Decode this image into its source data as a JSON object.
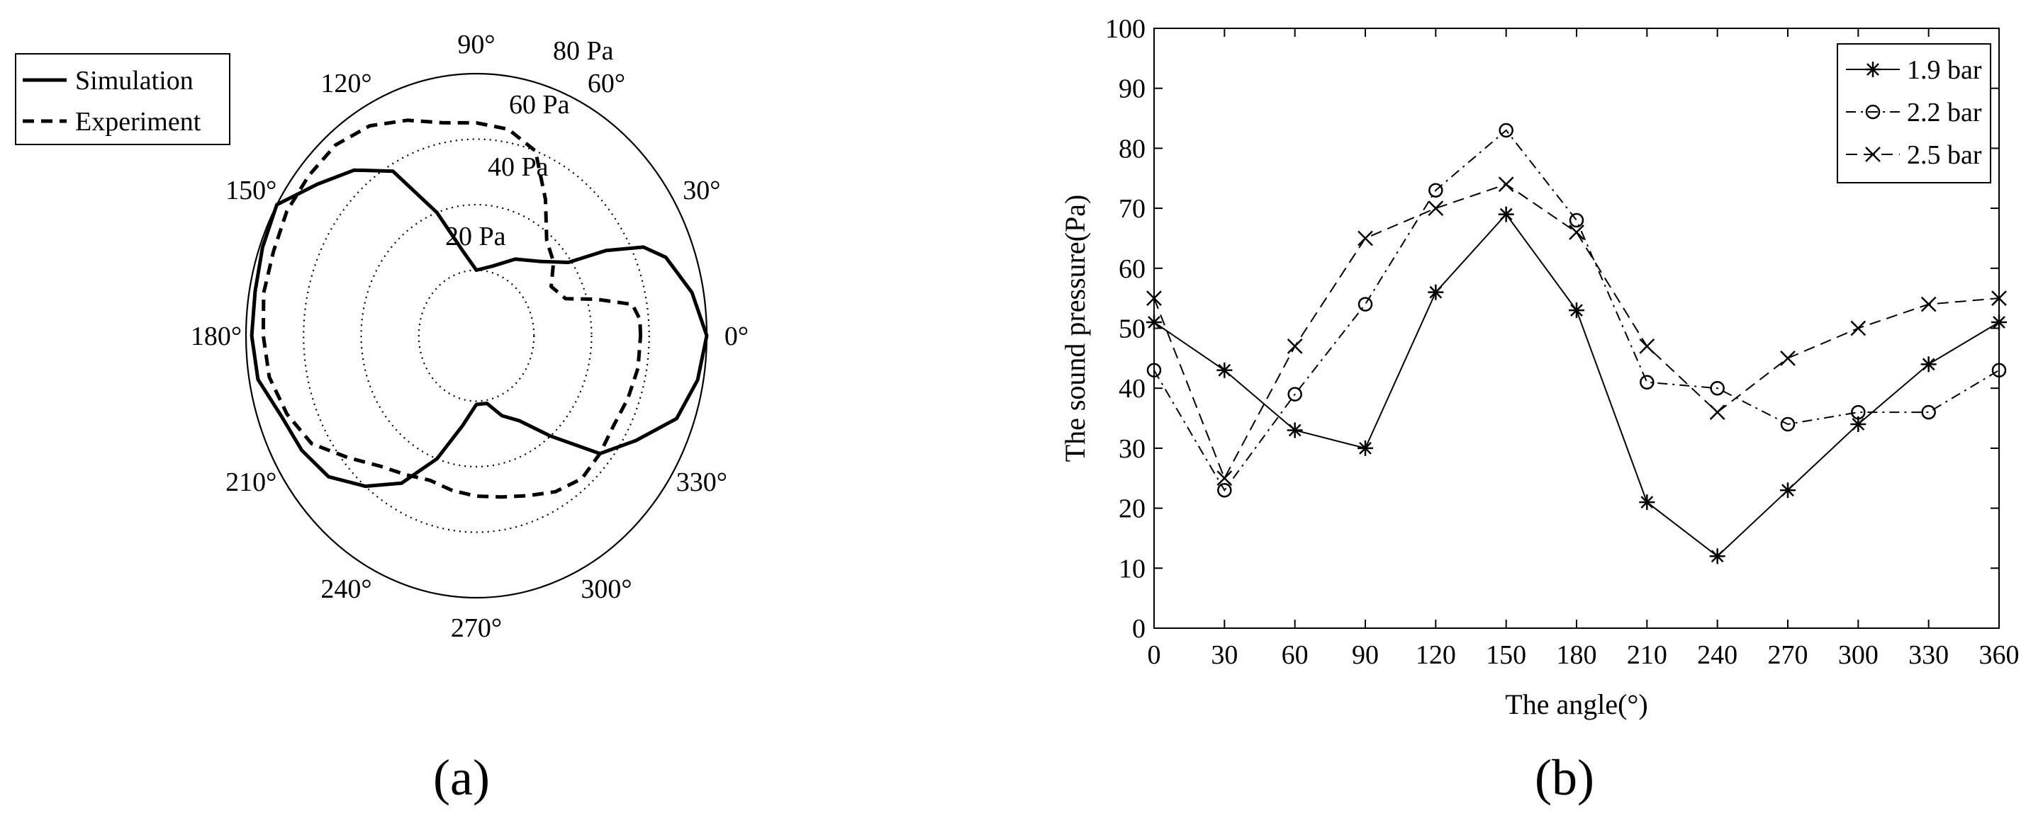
{
  "panels": [
    {
      "label": "(a)"
    },
    {
      "label": "(b)"
    }
  ],
  "chart_data": [
    {
      "type": "polar-line",
      "panel": "(a)",
      "angle_unit": "degree",
      "radial_unit": "Pa",
      "radial_ticks": [
        20,
        40,
        60,
        80
      ],
      "radial_tick_labels": [
        "20 Pa",
        "40 Pa",
        "60 Pa",
        "80 Pa"
      ],
      "angle_tick_labels": [
        "0°",
        "30°",
        "60°",
        "90°",
        "120°",
        "150°",
        "180°",
        "210°",
        "240°",
        "270°",
        "300°",
        "330°"
      ],
      "rlim": [
        0,
        80
      ],
      "legend": "top-left",
      "series": [
        {
          "name": "Simulation",
          "line": "solid",
          "points": [
            [
              0,
              80
            ],
            [
              10,
              76
            ],
            [
              20,
              70
            ],
            [
              25,
              64
            ],
            [
              30,
              52
            ],
            [
              35,
              39
            ],
            [
              45,
              32
            ],
            [
              60,
              27
            ],
            [
              75,
              22
            ],
            [
              90,
              20
            ],
            [
              100,
              26
            ],
            [
              110,
              40
            ],
            [
              120,
              58
            ],
            [
              130,
              66
            ],
            [
              140,
              72
            ],
            [
              150,
              80
            ],
            [
              160,
              79
            ],
            [
              170,
              78
            ],
            [
              180,
              78
            ],
            [
              190,
              77
            ],
            [
              200,
              72
            ],
            [
              210,
              70
            ],
            [
              220,
              67
            ],
            [
              230,
              60
            ],
            [
              240,
              52
            ],
            [
              250,
              40
            ],
            [
              260,
              28
            ],
            [
              270,
              21
            ],
            [
              280,
              21
            ],
            [
              290,
              26
            ],
            [
              300,
              30
            ],
            [
              310,
              40
            ],
            [
              320,
              56
            ],
            [
              330,
              64
            ],
            [
              340,
              74
            ],
            [
              350,
              78
            ],
            [
              360,
              80
            ]
          ]
        },
        {
          "name": "Experiment",
          "line": "dashed",
          "points": [
            [
              0,
              57
            ],
            [
              5,
              57
            ],
            [
              10,
              55
            ],
            [
              15,
              43
            ],
            [
              20,
              33
            ],
            [
              30,
              30
            ],
            [
              40,
              35
            ],
            [
              50,
              38
            ],
            [
              60,
              48
            ],
            [
              70,
              60
            ],
            [
              80,
              64
            ],
            [
              90,
              65
            ],
            [
              100,
              66
            ],
            [
              110,
              70
            ],
            [
              120,
              74
            ],
            [
              130,
              76
            ],
            [
              140,
              76
            ],
            [
              150,
              76
            ],
            [
              160,
              75
            ],
            [
              170,
              75
            ],
            [
              180,
              74
            ],
            [
              190,
              73
            ],
            [
              200,
              70
            ],
            [
              210,
              66
            ],
            [
              220,
              58
            ],
            [
              230,
              52
            ],
            [
              240,
              49
            ],
            [
              250,
              47
            ],
            [
              260,
              48
            ],
            [
              270,
              49
            ],
            [
              280,
              50
            ],
            [
              290,
              52
            ],
            [
              300,
              55
            ],
            [
              310,
              57
            ],
            [
              320,
              56
            ],
            [
              330,
              55
            ],
            [
              340,
              56
            ],
            [
              350,
              57
            ],
            [
              360,
              57
            ]
          ]
        }
      ]
    },
    {
      "type": "line",
      "panel": "(b)",
      "xlabel": "The angle(°)",
      "ylabel": "The sound pressure(Pa)",
      "x": [
        0,
        30,
        60,
        90,
        120,
        150,
        180,
        210,
        240,
        270,
        300,
        330,
        360
      ],
      "xlim": [
        0,
        360
      ],
      "ylim": [
        0,
        100
      ],
      "xticks": [
        0,
        30,
        60,
        90,
        120,
        150,
        180,
        210,
        240,
        270,
        300,
        330,
        360
      ],
      "yticks": [
        0,
        10,
        20,
        30,
        40,
        50,
        60,
        70,
        80,
        90,
        100
      ],
      "legend": "top-right",
      "grid": false,
      "series": [
        {
          "name": "1.9 bar",
          "marker": "asterisk",
          "line": "solid",
          "values": [
            51,
            43,
            33,
            30,
            56,
            69,
            53,
            21,
            12,
            23,
            34,
            44,
            51
          ]
        },
        {
          "name": "2.2 bar",
          "marker": "circle",
          "line": "dashdot",
          "values": [
            43,
            23,
            39,
            54,
            73,
            83,
            68,
            41,
            40,
            34,
            36,
            36,
            43
          ]
        },
        {
          "name": "2.5 bar",
          "marker": "x",
          "line": "dashed",
          "values": [
            55,
            25,
            47,
            65,
            70,
            74,
            66,
            47,
            36,
            45,
            50,
            54,
            55
          ]
        }
      ]
    }
  ]
}
